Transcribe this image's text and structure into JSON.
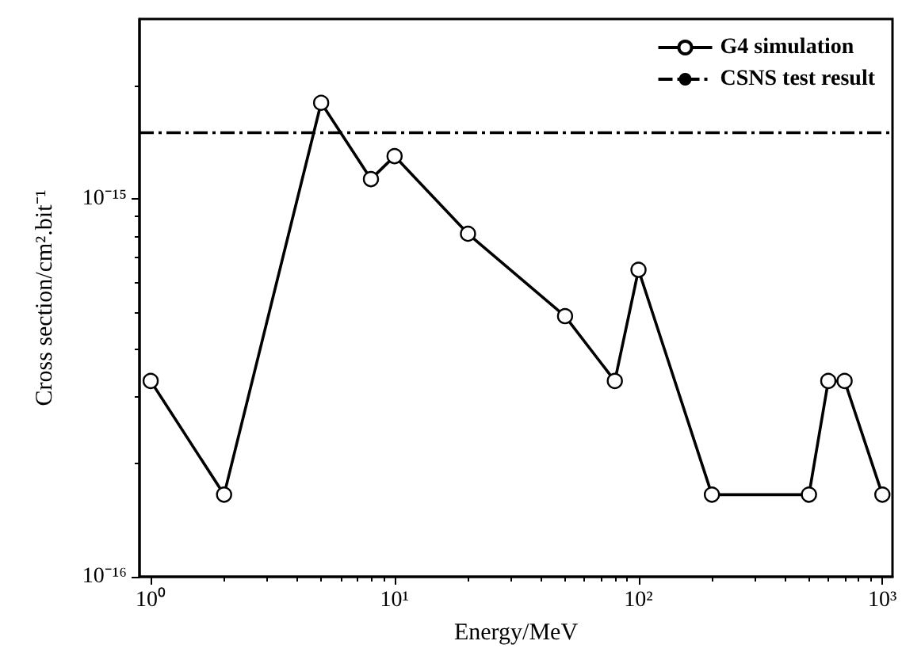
{
  "chart_data": {
    "type": "line",
    "xlabel": "Energy/MeV",
    "ylabel": "Cross section/cm².bit⁻¹",
    "x": [
      1,
      2,
      5,
      8,
      10,
      20,
      50,
      80,
      100,
      200,
      500,
      600,
      700,
      1000
    ],
    "series": [
      {
        "name": "G4 simulation",
        "color": "#000000",
        "values": [
          3.3e-16,
          1.65e-16,
          1.8e-15,
          1.13e-15,
          1.3e-15,
          8.1e-16,
          4.9e-16,
          3.3e-16,
          6.5e-16,
          1.65e-16,
          1.65e-16,
          3.3e-16,
          3.3e-16,
          1.65e-16
        ]
      }
    ],
    "ref_lines": [
      {
        "axis": "y",
        "value": 1.5e-15,
        "label": "CSNS test result",
        "color": "#000000",
        "line_style": "dashed"
      }
    ],
    "log": "xy",
    "xlim": [
      0.9,
      1100.0
    ],
    "ylim": [
      1e-16,
      3e-15
    ],
    "xticks": [
      {
        "value": 1,
        "label": "10⁰"
      },
      {
        "value": 10,
        "label": "10¹"
      },
      {
        "value": 100,
        "label": "10²"
      },
      {
        "value": 1000,
        "label": "10³"
      }
    ],
    "yticks": [
      {
        "value": 1e-16,
        "label": "10⁻¹⁶"
      },
      {
        "value": 1e-15,
        "label": "10⁻¹⁵"
      }
    ],
    "marker": "circle",
    "line_style": "solid",
    "grid": false,
    "legend": "top right"
  }
}
